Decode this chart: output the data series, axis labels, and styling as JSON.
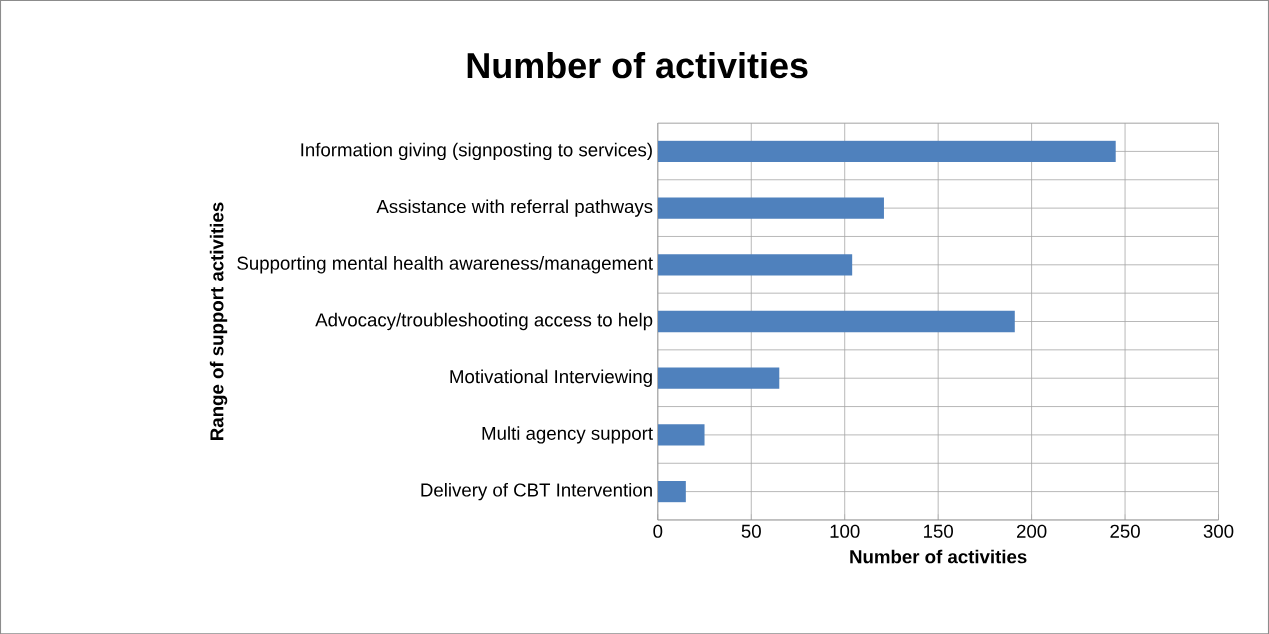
{
  "chart_data": {
    "type": "bar",
    "orientation": "horizontal",
    "title": "Number of activities",
    "xlabel": "Number of activities",
    "ylabel": "Range of support activities",
    "categories": [
      "Information giving (signposting to services)",
      "Assistance with referral pathways",
      "Supporting mental health awareness/management",
      "Advocacy/troubleshooting access to help",
      "Motivational Interviewing",
      "Multi agency support",
      "Delivery of CBT Intervention"
    ],
    "values": [
      245,
      121,
      104,
      191,
      65,
      25,
      15
    ],
    "color": "#4f81bd",
    "xlim": [
      0,
      300
    ],
    "xticks": [
      0,
      50,
      100,
      150,
      200,
      250,
      300
    ],
    "grid": true
  }
}
